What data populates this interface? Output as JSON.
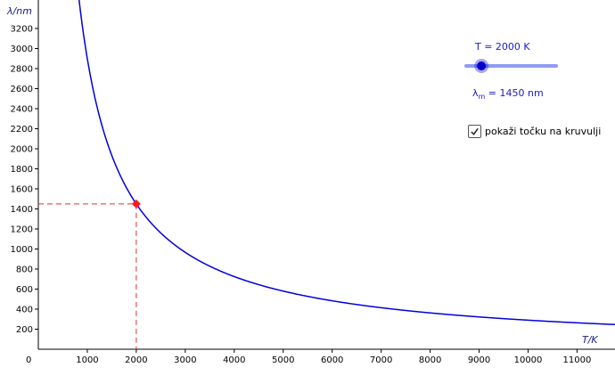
{
  "axis": {
    "y_label": "λ/nm",
    "x_label": "T/K",
    "origin_label": "0"
  },
  "slider": {
    "label": "T = 2000 K",
    "value": 2000,
    "min": 1000,
    "max": 11000,
    "fraction": 0.17
  },
  "readout": {
    "symbol": "λ",
    "subscript": "m",
    "text": " = 1450 nm"
  },
  "checkbox": {
    "label": "pokaži točku na kruvulji",
    "checked": true
  },
  "colors": {
    "curve": "#0000dd",
    "point": "#ff1a1a",
    "guides": "#e03030",
    "slider_track": "#8f9cf3",
    "slider_knob": "#0000cc"
  },
  "chart_data": {
    "type": "line",
    "title": "",
    "xlabel": "T/K",
    "ylabel": "λ/nm",
    "xlim": [
      0,
      11800
    ],
    "ylim": [
      0,
      3420
    ],
    "x_ticks": [
      1000,
      2000,
      3000,
      4000,
      5000,
      6000,
      7000,
      8000,
      9000,
      10000,
      11000
    ],
    "y_ticks": [
      200,
      400,
      600,
      800,
      1000,
      1200,
      1400,
      1600,
      1800,
      2000,
      2200,
      2400,
      2600,
      2800,
      3000,
      3200
    ],
    "function": "λ = 2900000 / T",
    "point": {
      "x": 2000,
      "y": 1450
    }
  }
}
